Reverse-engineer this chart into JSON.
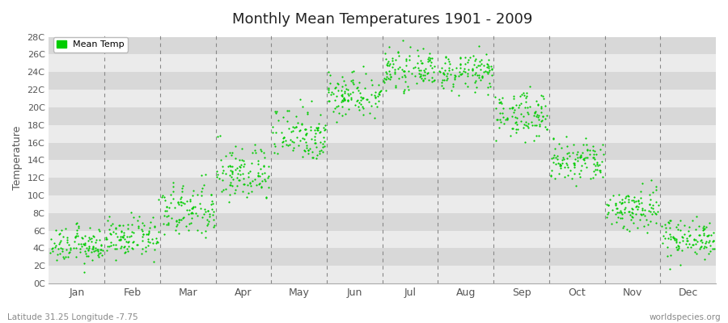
{
  "title": "Monthly Mean Temperatures 1901 - 2009",
  "ylabel": "Temperature",
  "subtitle_left": "Latitude 31.25 Longitude -7.75",
  "subtitle_right": "worldspecies.org",
  "legend_label": "Mean Temp",
  "dot_color": "#00cc00",
  "background_color": "#ffffff",
  "band_color_even": "#ebebeb",
  "band_color_odd": "#d8d8d8",
  "yticks": [
    0,
    2,
    4,
    6,
    8,
    10,
    12,
    14,
    16,
    18,
    20,
    22,
    24,
    26,
    28
  ],
  "ytick_labels": [
    "0C",
    "2C",
    "4C",
    "6C",
    "8C",
    "10C",
    "12C",
    "14C",
    "16C",
    "18C",
    "20C",
    "22C",
    "24C",
    "26C",
    "28C"
  ],
  "months": [
    "Jan",
    "Feb",
    "Mar",
    "Apr",
    "May",
    "Jun",
    "Jul",
    "Aug",
    "Sep",
    "Oct",
    "Nov",
    "Dec"
  ],
  "ylim": [
    0,
    28.5
  ],
  "n_years": 109,
  "monthly_means": [
    4.3,
    5.2,
    8.2,
    12.5,
    17.0,
    21.5,
    24.2,
    24.0,
    19.2,
    13.8,
    8.5,
    5.2
  ],
  "monthly_stds": [
    1.0,
    1.1,
    1.6,
    1.6,
    1.6,
    1.3,
    1.0,
    1.0,
    1.3,
    1.3,
    1.3,
    1.1
  ]
}
